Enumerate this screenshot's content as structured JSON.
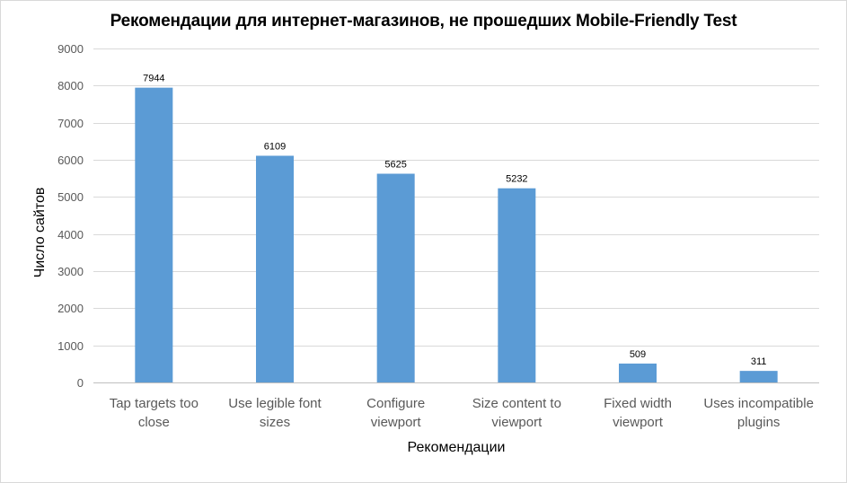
{
  "chart_data": {
    "type": "bar",
    "title": "Рекомендации для интернет-магазинов, не прошедших Mobile-Friendly Test",
    "xlabel": "Рекомендации",
    "ylabel": "Число сайтов",
    "categories": [
      [
        "Tap targets too",
        "close"
      ],
      [
        "Use legible font",
        "sizes"
      ],
      [
        "Configure",
        "viewport"
      ],
      [
        "Size content to",
        "viewport"
      ],
      [
        "Fixed width",
        "viewport"
      ],
      [
        "Uses incompatible",
        "plugins"
      ]
    ],
    "values": [
      7944,
      6109,
      5625,
      5232,
      509,
      311
    ],
    "ylim": [
      0,
      9000
    ],
    "yticks": [
      0,
      1000,
      2000,
      3000,
      4000,
      5000,
      6000,
      7000,
      8000,
      9000
    ],
    "grid": true,
    "legend": "none",
    "bar_color": "#5b9bd5",
    "grid_color": "#d9d9d9",
    "axis_color": "#bfbfbf"
  }
}
